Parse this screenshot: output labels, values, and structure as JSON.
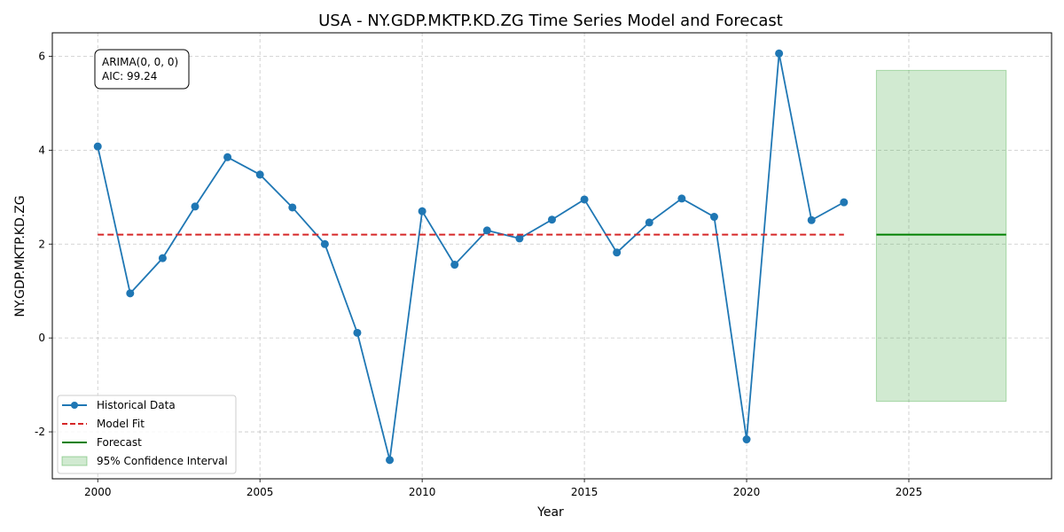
{
  "chart_data": {
    "type": "line",
    "title": "USA - NY.GDP.MKTP.KD.ZG Time Series Model and Forecast",
    "xlabel": "Year",
    "ylabel": "NY.GDP.MKTP.KD.ZG",
    "xlim": [
      1998.6,
      2029.4
    ],
    "ylim": [
      -3.0,
      6.5
    ],
    "xticks": [
      2000,
      2005,
      2010,
      2015,
      2020,
      2025
    ],
    "yticks": [
      -2,
      0,
      2,
      4,
      6
    ],
    "grid": true,
    "legend_position": "lower-left",
    "annotation": [
      "ARIMA(0, 0, 0)",
      "AIC: 99.24"
    ],
    "series": [
      {
        "name": "Historical Data",
        "style": "line-marker",
        "color": "#1f77b4",
        "x": [
          2000,
          2001,
          2002,
          2003,
          2004,
          2005,
          2006,
          2007,
          2008,
          2009,
          2010,
          2011,
          2012,
          2013,
          2014,
          2015,
          2016,
          2017,
          2018,
          2019,
          2020,
          2021,
          2022,
          2023
        ],
        "y": [
          4.08,
          0.95,
          1.7,
          2.8,
          3.85,
          3.48,
          2.78,
          2.0,
          0.11,
          -2.6,
          2.7,
          1.56,
          2.29,
          2.12,
          2.52,
          2.95,
          1.82,
          2.46,
          2.97,
          2.58,
          -2.16,
          6.06,
          2.51,
          2.89
        ]
      },
      {
        "name": "Model Fit",
        "style": "dashed",
        "color": "#d62728",
        "x": [
          2000,
          2023
        ],
        "y": [
          2.2,
          2.2
        ]
      },
      {
        "name": "Forecast",
        "style": "solid",
        "color": "#008000",
        "x": [
          2024,
          2028
        ],
        "y": [
          2.2,
          2.2
        ]
      },
      {
        "name": "95% Confidence Interval",
        "style": "band",
        "color": "#2ca02c",
        "x": [
          2024,
          2028
        ],
        "lower": -1.35,
        "upper": 5.7
      }
    ]
  }
}
